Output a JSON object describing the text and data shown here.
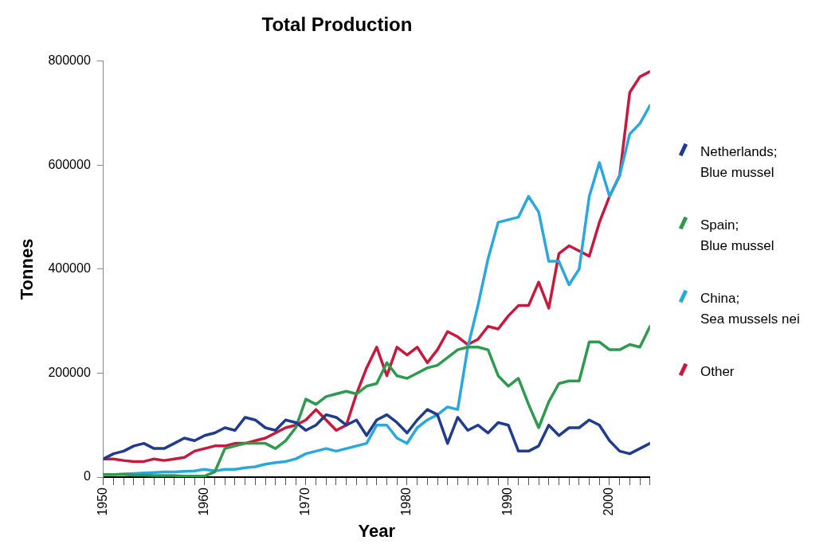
{
  "chart_data": {
    "type": "line",
    "title": "Total Production",
    "xlabel": "Year",
    "ylabel": "Tonnes",
    "x": [
      1950,
      1951,
      1952,
      1953,
      1954,
      1955,
      1956,
      1957,
      1958,
      1959,
      1960,
      1961,
      1962,
      1963,
      1964,
      1965,
      1966,
      1967,
      1968,
      1969,
      1970,
      1971,
      1972,
      1973,
      1974,
      1975,
      1976,
      1977,
      1978,
      1979,
      1980,
      1981,
      1982,
      1983,
      1984,
      1985,
      1986,
      1987,
      1988,
      1989,
      1990,
      1991,
      1992,
      1993,
      1994,
      1995,
      1996,
      1997,
      1998,
      1999,
      2000,
      2001,
      2002,
      2003,
      2004
    ],
    "series": [
      {
        "name": "Netherlands; Blue mussel",
        "color": "#1f3c8f",
        "values": [
          35000,
          45000,
          50000,
          60000,
          65000,
          55000,
          55000,
          65000,
          75000,
          70000,
          80000,
          85000,
          95000,
          90000,
          115000,
          110000,
          95000,
          90000,
          110000,
          105000,
          90000,
          100000,
          120000,
          115000,
          100000,
          110000,
          80000,
          110000,
          120000,
          105000,
          85000,
          110000,
          130000,
          120000,
          65000,
          115000,
          90000,
          100000,
          85000,
          105000,
          100000,
          50000,
          50000,
          60000,
          100000,
          80000,
          95000,
          95000,
          110000,
          100000,
          70000,
          50000,
          45000,
          55000,
          65000
        ]
      },
      {
        "name": "Spain; Blue mussel",
        "color": "#2e9a4e",
        "values": [
          5000,
          5000,
          5000,
          4000,
          4000,
          3000,
          3000,
          3000,
          2000,
          2000,
          2000,
          10000,
          55000,
          60000,
          65000,
          65000,
          65000,
          55000,
          70000,
          95000,
          150000,
          140000,
          155000,
          160000,
          165000,
          160000,
          175000,
          180000,
          220000,
          195000,
          190000,
          200000,
          210000,
          215000,
          230000,
          245000,
          250000,
          250000,
          245000,
          195000,
          175000,
          190000,
          140000,
          95000,
          145000,
          180000,
          185000,
          185000,
          260000,
          260000,
          245000,
          245000,
          255000,
          250000,
          290000
        ]
      },
      {
        "name": "China; Sea mussels nei",
        "color": "#2aa7dc",
        "values": [
          5000,
          5000,
          6000,
          7000,
          8000,
          9000,
          10000,
          10000,
          11000,
          12000,
          15000,
          12000,
          15000,
          15000,
          18000,
          20000,
          25000,
          28000,
          30000,
          35000,
          45000,
          50000,
          55000,
          50000,
          55000,
          60000,
          65000,
          100000,
          100000,
          75000,
          65000,
          95000,
          110000,
          120000,
          135000,
          130000,
          250000,
          330000,
          420000,
          490000,
          495000,
          500000,
          540000,
          510000,
          415000,
          415000,
          370000,
          400000,
          540000,
          605000,
          540000,
          580000,
          660000,
          680000,
          715000
        ]
      },
      {
        "name": "Other",
        "color": "#c8183c",
        "values": [
          35000,
          35000,
          32000,
          30000,
          30000,
          35000,
          32000,
          35000,
          38000,
          50000,
          55000,
          60000,
          60000,
          65000,
          65000,
          70000,
          75000,
          85000,
          95000,
          100000,
          110000,
          130000,
          110000,
          90000,
          100000,
          160000,
          210000,
          250000,
          195000,
          250000,
          235000,
          250000,
          220000,
          245000,
          280000,
          270000,
          255000,
          265000,
          290000,
          285000,
          310000,
          330000,
          330000,
          375000,
          325000,
          430000,
          445000,
          435000,
          425000,
          490000,
          540000,
          580000,
          740000,
          770000,
          780000
        ]
      }
    ],
    "xlim": [
      1950,
      2004
    ],
    "xticks": [
      1950,
      {
        "value": 1951,
        "label": null
      },
      {
        "value": 1952,
        "label": null
      },
      {
        "value": 1953,
        "label": null
      },
      {
        "value": 1954,
        "label": null
      },
      {
        "value": 1955,
        "label": null
      },
      {
        "value": 1956,
        "label": null
      },
      {
        "value": 1957,
        "label": null
      },
      {
        "value": 1958,
        "label": null
      },
      {
        "value": 1959,
        "label": null
      },
      1960,
      {
        "value": 1961,
        "label": null
      },
      {
        "value": 1962,
        "label": null
      },
      {
        "value": 1963,
        "label": null
      },
      {
        "value": 1964,
        "label": null
      },
      {
        "value": 1965,
        "label": null
      },
      {
        "value": 1966,
        "label": null
      },
      {
        "value": 1967,
        "label": null
      },
      {
        "value": 1968,
        "label": null
      },
      {
        "value": 1969,
        "label": null
      },
      1970,
      {
        "value": 1971,
        "label": null
      },
      {
        "value": 1972,
        "label": null
      },
      {
        "value": 1973,
        "label": null
      },
      {
        "value": 1974,
        "label": null
      },
      {
        "value": 1975,
        "label": null
      },
      {
        "value": 1976,
        "label": null
      },
      {
        "value": 1977,
        "label": null
      },
      {
        "value": 1978,
        "label": null
      },
      {
        "value": 1979,
        "label": null
      },
      1980,
      {
        "value": 1981,
        "label": null
      },
      {
        "value": 1982,
        "label": null
      },
      {
        "value": 1983,
        "label": null
      },
      {
        "value": 1984,
        "label": null
      },
      {
        "value": 1985,
        "label": null
      },
      {
        "value": 1986,
        "label": null
      },
      {
        "value": 1987,
        "label": null
      },
      {
        "value": 1988,
        "label": null
      },
      {
        "value": 1989,
        "label": null
      },
      1990,
      {
        "value": 1991,
        "label": null
      },
      {
        "value": 1992,
        "label": null
      },
      {
        "value": 1993,
        "label": null
      },
      {
        "value": 1994,
        "label": null
      },
      {
        "value": 1995,
        "label": null
      },
      {
        "value": 1996,
        "label": null
      },
      {
        "value": 1997,
        "label": null
      },
      {
        "value": 1998,
        "label": null
      },
      {
        "value": 1999,
        "label": null
      },
      2000,
      {
        "value": 2001,
        "label": null
      },
      {
        "value": 2002,
        "label": null
      },
      {
        "value": 2003,
        "label": null
      },
      {
        "value": 2004,
        "label": null
      }
    ],
    "ylim": [
      0,
      800000
    ],
    "yticks": [
      0,
      200000,
      400000,
      600000,
      800000
    ],
    "grid": false,
    "legend": "right",
    "marker": "none",
    "line_style": "solid"
  }
}
